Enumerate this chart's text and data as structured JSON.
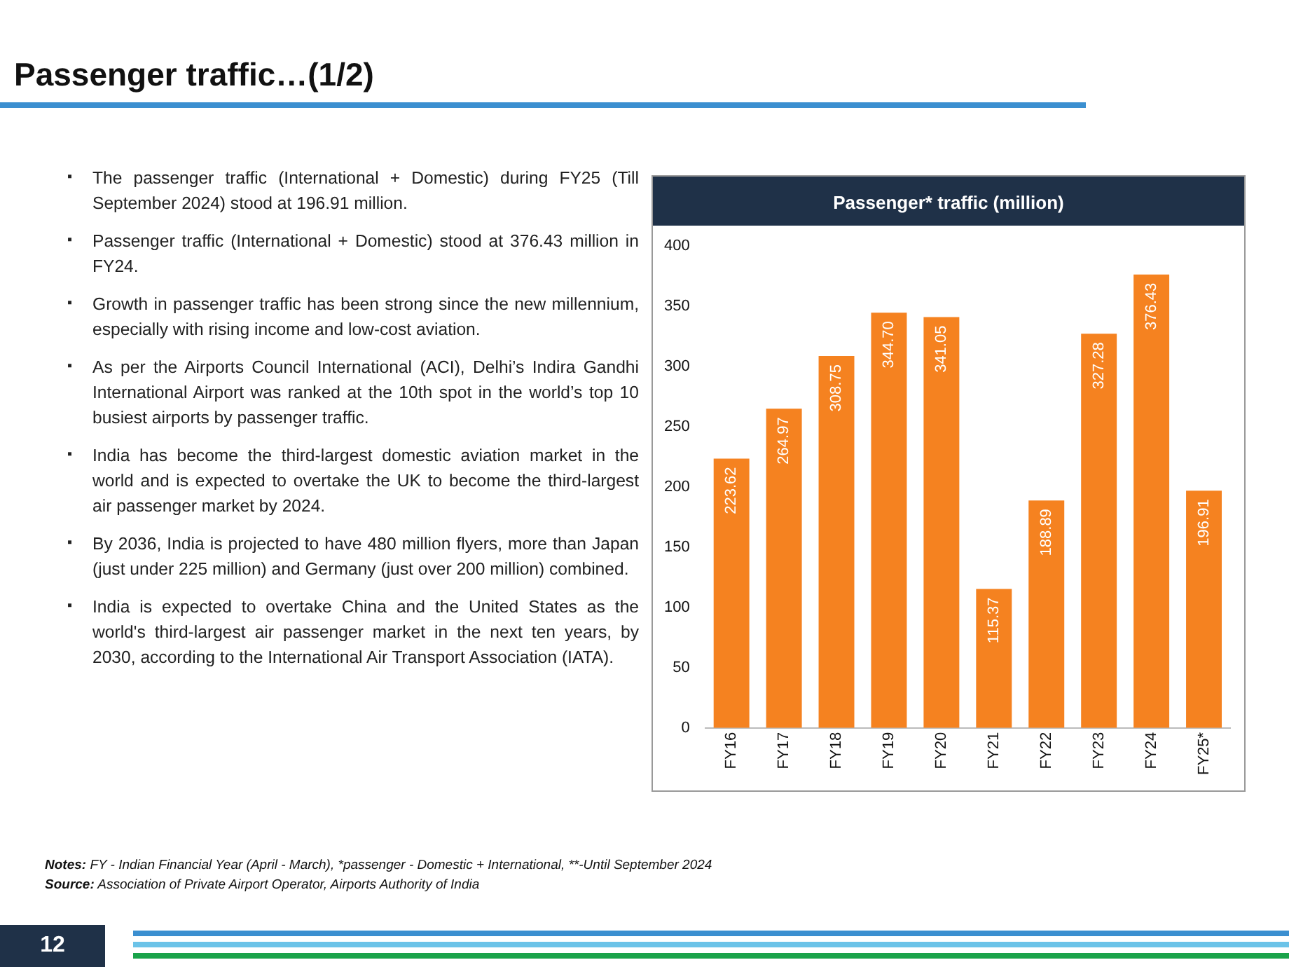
{
  "chart_data": {
    "type": "bar",
    "title": "Passenger traffic…(1/2)",
    "subtitle": "Passenger* traffic (million)",
    "categories": [
      "FY16",
      "FY17",
      "FY18",
      "FY19",
      "FY20",
      "FY21",
      "FY22",
      "FY23",
      "FY24",
      "FY25*"
    ],
    "values": [
      223.62,
      264.97,
      308.75,
      344.7,
      341.05,
      115.37,
      188.89,
      327.28,
      376.43,
      196.91
    ],
    "value_labels": [
      "223.62",
      "264.97",
      "308.75",
      "344.70",
      "341.05",
      "115.37",
      "188.89",
      "327.28",
      "376.43",
      "196.91"
    ],
    "color": "#f58220",
    "ylim": [
      0,
      400
    ],
    "yticks": [
      0,
      50,
      100,
      150,
      200,
      250,
      300,
      350,
      400
    ],
    "grid": false,
    "annotations": [
      "▪ The passenger traffic (International + Domestic) during FY25 (Till September 2024)  stood at 196.91 million.",
      "▪ Passenger traffic (International + Domestic) stood at 376.43 million in FY24.",
      "▪ Growth in passenger traffic has been strong since the new millennium, especially with rising income and low-cost aviation.",
      "▪ As per the Airports Council International (ACI), Delhi’s Indira Gandhi International Airport was ranked at the 10th spot in the world’s top 10 busiest airports by passenger traffic.",
      "▪ India has become the third-largest domestic aviation market in the world and is expected to overtake the UK to become the third-largest air passenger market by 2024.",
      "▪ By 2036, India is projected to have 480 million flyers, more than Japan (just under 225 million) and Germany (just over 200 million) combined.",
      "▪ India is expected to overtake China and the United States as the world's third-largest air passenger market in the next ten years, by 2030, according to the International Air Transport Association (IATA).",
      "Notes: FY - Indian Financial Year (April - March), *passenger - Domestic + International, **-Until September 2024",
      "Source: Association of Private Airport Operator, Airports Authority of India",
      "12"
    ]
  }
}
